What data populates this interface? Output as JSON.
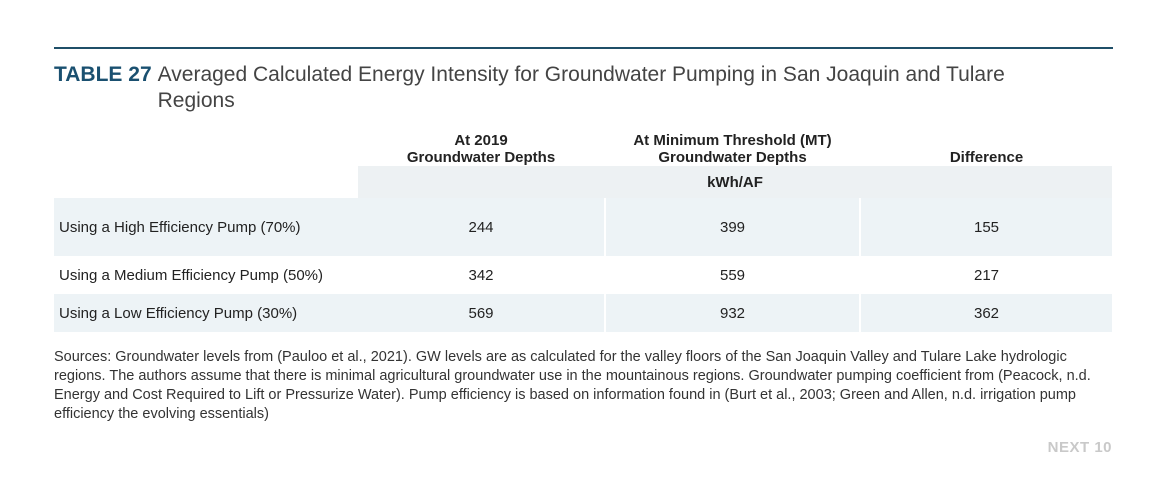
{
  "title": {
    "label": "TABLE 27",
    "text": "Averaged Calculated Energy Intensity for Groundwater Pumping in San Joaquin and Tulare Regions"
  },
  "table": {
    "columns": [
      {
        "line1": "At 2019",
        "line2": "Groundwater Depths"
      },
      {
        "line1": "At Minimum Threshold (MT)",
        "line2": "Groundwater Depths"
      },
      {
        "line1": "",
        "line2": "Difference"
      }
    ],
    "unit": "kWh/AF",
    "rows": [
      {
        "label": "Using a High Efficiency Pump (70%)",
        "values": [
          "244",
          "399",
          "155"
        ]
      },
      {
        "label": "Using a Medium Efficiency Pump (50%)",
        "values": [
          "342",
          "559",
          "217"
        ]
      },
      {
        "label": "Using a Low Efficiency Pump (30%)",
        "values": [
          "569",
          "932",
          "362"
        ]
      }
    ]
  },
  "sources": "Sources: Groundwater levels from (Pauloo et al., 2021). GW levels are as calculated for the valley floors of the San Joaquin Valley and Tulare Lake hydrologic regions. The authors assume that there is minimal agricultural groundwater use in the mountainous regions. Groundwater pumping coefficient from (Peacock, n.d. Energy and Cost Required to Lift or Pressurize Water). Pump efficiency is based on information found in (Burt et al., 2003; Green and Allen, n.d. irrigation pump efficiency the evolving essentials)",
  "brand": "NEXT 10",
  "colors": {
    "rule": "#1f4f68",
    "title_label": "#1a5070",
    "row_shade": "#edf3f6",
    "brand": "#c9c9c9"
  }
}
